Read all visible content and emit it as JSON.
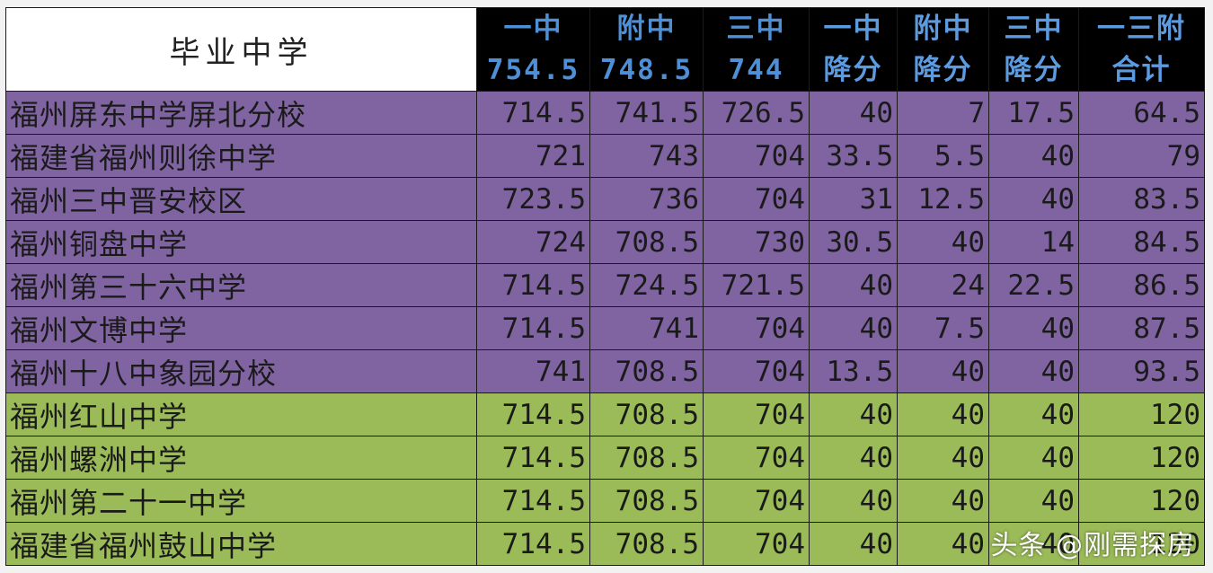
{
  "table": {
    "header_title": "毕业中学",
    "columns": [
      {
        "line1": "一中",
        "line2": "754.5"
      },
      {
        "line1": "附中",
        "line2": "748.5"
      },
      {
        "line1": "三中",
        "line2": "744"
      },
      {
        "line1": "一中",
        "line2": "降分"
      },
      {
        "line1": "附中",
        "line2": "降分"
      },
      {
        "line1": "三中",
        "line2": "降分"
      },
      {
        "line1": "一三附",
        "line2": "合计"
      }
    ],
    "rows": [
      {
        "name": "福州屏东中学屏北分校",
        "values": [
          "714.5",
          "741.5",
          "726.5",
          "40",
          "7",
          "17.5",
          "64.5"
        ],
        "group": "purple"
      },
      {
        "name": "福建省福州则徐中学",
        "values": [
          "721",
          "743",
          "704",
          "33.5",
          "5.5",
          "40",
          "79"
        ],
        "group": "purple"
      },
      {
        "name": "福州三中晋安校区",
        "values": [
          "723.5",
          "736",
          "704",
          "31",
          "12.5",
          "40",
          "83.5"
        ],
        "group": "purple"
      },
      {
        "name": "福州铜盘中学",
        "values": [
          "724",
          "708.5",
          "730",
          "30.5",
          "40",
          "14",
          "84.5"
        ],
        "group": "purple"
      },
      {
        "name": "福州第三十六中学",
        "values": [
          "714.5",
          "724.5",
          "721.5",
          "40",
          "24",
          "22.5",
          "86.5"
        ],
        "group": "purple"
      },
      {
        "name": "福州文博中学",
        "values": [
          "714.5",
          "741",
          "704",
          "40",
          "7.5",
          "40",
          "87.5"
        ],
        "group": "purple"
      },
      {
        "name": "福州十八中象园分校",
        "values": [
          "741",
          "708.5",
          "704",
          "13.5",
          "40",
          "40",
          "93.5"
        ],
        "group": "purple"
      },
      {
        "name": "福州红山中学",
        "values": [
          "714.5",
          "708.5",
          "704",
          "40",
          "40",
          "40",
          "120"
        ],
        "group": "green"
      },
      {
        "name": "福州螺洲中学",
        "values": [
          "714.5",
          "708.5",
          "704",
          "40",
          "40",
          "40",
          "120"
        ],
        "group": "green"
      },
      {
        "name": "福州第二十一中学",
        "values": [
          "714.5",
          "708.5",
          "704",
          "40",
          "40",
          "40",
          "120"
        ],
        "group": "green"
      },
      {
        "name": "福建省福州鼓山中学",
        "values": [
          "714.5",
          "708.5",
          "704",
          "40",
          "40",
          "40",
          "120"
        ],
        "group": "green"
      }
    ]
  },
  "watermark": "头条 @刚需探房",
  "colors": {
    "purple": "#8064a2",
    "green": "#9bbb59",
    "header_bg": "#000000",
    "header_text": "#4f8fd6"
  }
}
